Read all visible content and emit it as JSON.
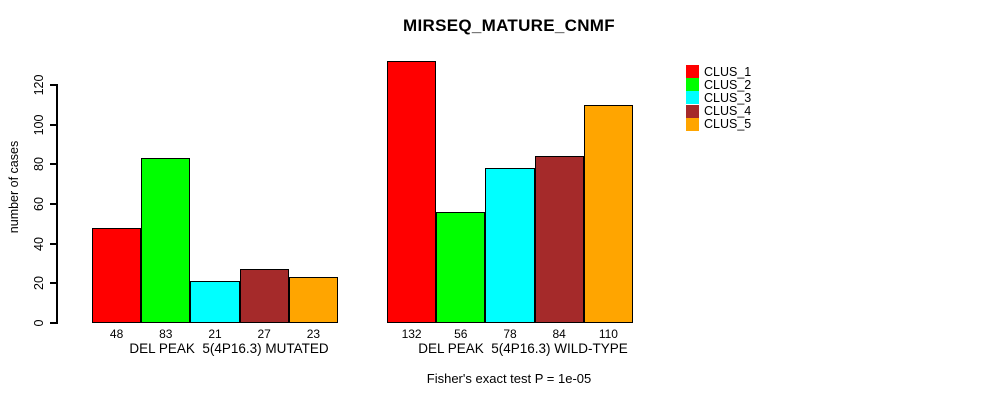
{
  "title": "MIRSEQ_MATURE_CNMF",
  "footer": "Fisher's exact test P = 1e-05",
  "y_axis": {
    "label": "number of cases",
    "ticks": [
      0,
      20,
      40,
      60,
      80,
      100,
      120
    ]
  },
  "legend": {
    "items": [
      {
        "label": "CLUS_1",
        "color": "#FF0000"
      },
      {
        "label": "CLUS_2",
        "color": "#00FF00"
      },
      {
        "label": "CLUS_3",
        "color": "#00FFFF"
      },
      {
        "label": "CLUS_4",
        "color": "#A52A2A"
      },
      {
        "label": "CLUS_5",
        "color": "#FFA500"
      }
    ]
  },
  "chart_data": {
    "type": "bar",
    "title": "MIRSEQ_MATURE_CNMF",
    "xlabel": "",
    "ylabel": "number of cases",
    "ylim": [
      0,
      132
    ],
    "yticks": [
      0,
      20,
      40,
      60,
      80,
      100,
      120
    ],
    "grid": false,
    "legend_position": "top-right",
    "bar_borders": "#000000",
    "series": [
      "CLUS_1",
      "CLUS_2",
      "CLUS_3",
      "CLUS_4",
      "CLUS_5"
    ],
    "colors": [
      "#FF0000",
      "#00FF00",
      "#00FFFF",
      "#A52A2A",
      "#FFA500"
    ],
    "groups": [
      {
        "category": "DEL PEAK  5(4P16.3) MUTATED",
        "values": [
          48,
          83,
          21,
          27,
          23
        ]
      },
      {
        "category": "DEL PEAK  5(4P16.3) WILD-TYPE",
        "values": [
          132,
          56,
          78,
          84,
          110
        ]
      }
    ],
    "value_labels_shown": true,
    "annotation": "Fisher's exact test P = 1e-05"
  }
}
